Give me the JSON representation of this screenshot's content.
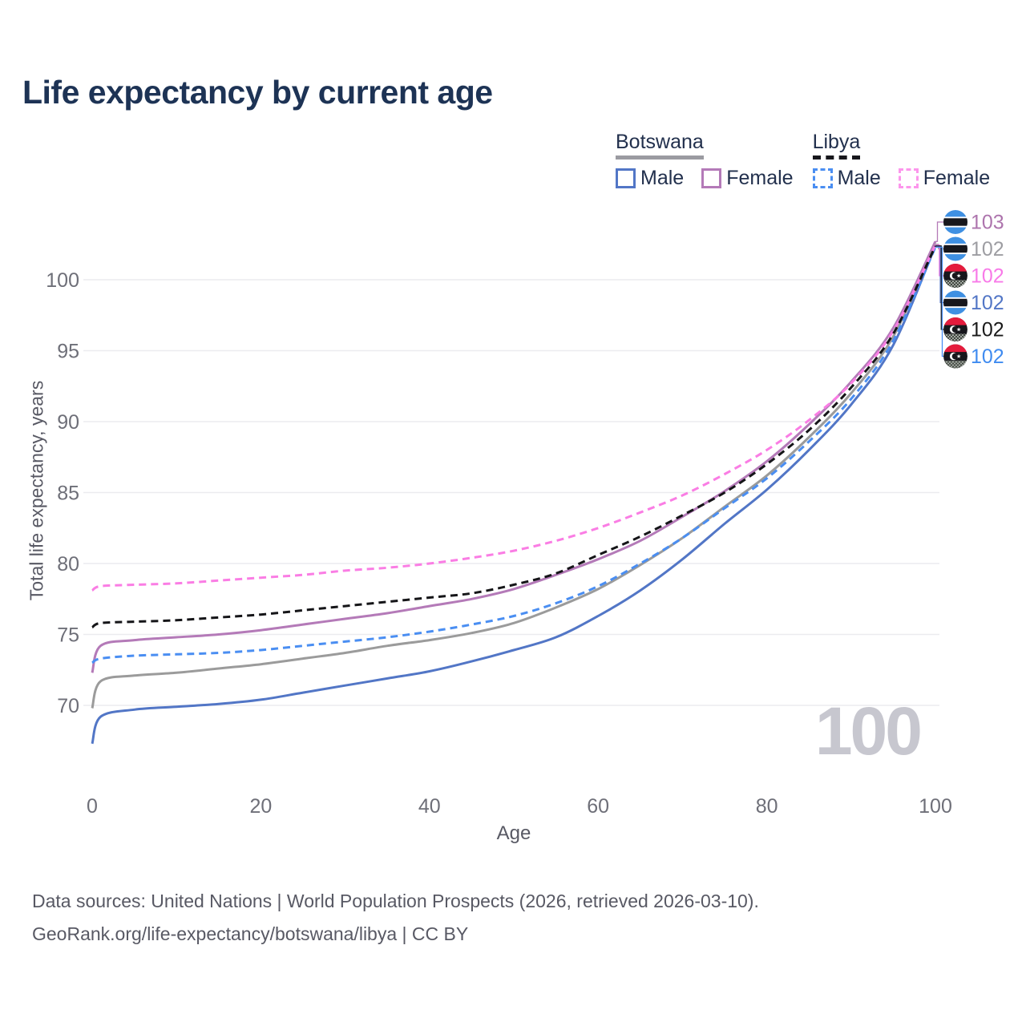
{
  "title": "Life expectancy by current age",
  "legend": {
    "groups": [
      {
        "title": "Botswana",
        "line_style": "solid",
        "underline_color": "#9b9ba1",
        "items": [
          {
            "label": "Male",
            "color": "#5276c6",
            "dashed": false
          },
          {
            "label": "Female",
            "color": "#b47ab8",
            "dashed": false
          }
        ]
      },
      {
        "title": "Libya",
        "line_style": "dashed",
        "underline_color": "#17171c",
        "items": [
          {
            "label": "Male",
            "color": "#4a8ef2",
            "dashed": true
          },
          {
            "label": "Female",
            "color": "#fc96ec",
            "dashed": true
          }
        ]
      }
    ]
  },
  "chart_data": {
    "type": "line",
    "title": "Life expectancy by current age",
    "xlabel": "Age",
    "ylabel": "Total life expectancy, years",
    "x_ticks": [
      0,
      20,
      40,
      60,
      80,
      100
    ],
    "y_ticks": [
      70,
      75,
      80,
      85,
      90,
      95,
      100
    ],
    "xlim": [
      0,
      100
    ],
    "ylim": [
      67,
      103
    ],
    "grid": "horizontal-only",
    "x": [
      0,
      1,
      5,
      10,
      15,
      20,
      25,
      30,
      35,
      40,
      45,
      50,
      55,
      60,
      65,
      70,
      75,
      80,
      85,
      90,
      95,
      100
    ],
    "series": [
      {
        "id": "bw_male",
        "name": "Botswana Male",
        "country": "Botswana",
        "sex": "Male",
        "color": "#5276c6",
        "dashed": false,
        "values": [
          67.3,
          69.2,
          69.7,
          69.9,
          70.1,
          70.4,
          70.9,
          71.4,
          71.9,
          72.4,
          73.1,
          73.9,
          74.8,
          76.3,
          78.1,
          80.3,
          82.8,
          85.2,
          88.0,
          91.2,
          95.4,
          102.4
        ],
        "end_label": "102",
        "end_label_color": "#5276c6",
        "flag": "botswana"
      },
      {
        "id": "bw_female",
        "name": "Botswana Female",
        "country": "Botswana",
        "sex": "Female",
        "color": "#b47ab8",
        "dashed": false,
        "values": [
          72.3,
          74.2,
          74.6,
          74.8,
          75.0,
          75.3,
          75.7,
          76.1,
          76.5,
          77.0,
          77.5,
          78.2,
          79.2,
          80.3,
          81.6,
          83.3,
          85.1,
          87.2,
          89.8,
          92.8,
          96.6,
          102.7
        ],
        "end_label": "103",
        "end_label_color": "#ad74ad",
        "flag": "botswana"
      },
      {
        "id": "bw_total",
        "name": "Botswana",
        "country": "Botswana",
        "sex": "All",
        "color": "#9b9b9b",
        "dashed": false,
        "values": [
          69.8,
          71.7,
          72.1,
          72.3,
          72.6,
          72.9,
          73.3,
          73.7,
          74.2,
          74.6,
          75.1,
          75.8,
          76.9,
          78.2,
          79.9,
          81.8,
          84.0,
          86.2,
          88.9,
          92.0,
          96.0,
          102.5
        ],
        "end_label": "102",
        "end_label_color": "#9d9da2",
        "flag": "botswana"
      },
      {
        "id": "ly_male",
        "name": "Libya Male",
        "country": "Libya",
        "sex": "Male",
        "color": "#4a8ef2",
        "dashed": true,
        "values": [
          73.0,
          73.3,
          73.5,
          73.6,
          73.7,
          73.9,
          74.2,
          74.5,
          74.8,
          75.2,
          75.7,
          76.3,
          77.2,
          78.4,
          80.0,
          81.8,
          83.9,
          86.0,
          88.6,
          91.6,
          95.7,
          102.3
        ],
        "end_label": "102",
        "end_label_color": "#3f8bf0",
        "flag": "libya"
      },
      {
        "id": "ly_female",
        "name": "Libya Female",
        "country": "Libya",
        "sex": "Female",
        "color": "#fa7de4",
        "dashed": true,
        "values": [
          78.1,
          78.4,
          78.5,
          78.6,
          78.8,
          79.0,
          79.2,
          79.5,
          79.7,
          80.0,
          80.4,
          80.9,
          81.6,
          82.5,
          83.6,
          84.8,
          86.3,
          88.0,
          90.1,
          92.7,
          96.4,
          102.45
        ],
        "end_label": "102",
        "end_label_color": "#f87ae8",
        "flag": "libya"
      },
      {
        "id": "ly_total",
        "name": "Libya",
        "country": "Libya",
        "sex": "All",
        "color": "#151518",
        "dashed": true,
        "values": [
          75.5,
          75.8,
          75.9,
          76.0,
          76.2,
          76.4,
          76.7,
          77.0,
          77.3,
          77.6,
          77.9,
          78.5,
          79.3,
          80.6,
          81.9,
          83.4,
          85.0,
          87.0,
          89.4,
          92.4,
          96.2,
          102.38
        ],
        "end_label": "102",
        "end_label_color": "#1a1a1a",
        "flag": "libya"
      }
    ],
    "end_label_order": [
      "bw_female",
      "bw_total",
      "ly_female",
      "bw_male",
      "ly_total",
      "ly_male"
    ],
    "legend_position": "top-right"
  },
  "watermark": "100",
  "footer": {
    "line1": "Data sources: United Nations | World Population Prospects (2026, retrieved 2026-03-10).",
    "line2": "GeoRank.org/life-expectancy/botswana/libya | CC BY"
  },
  "colors": {
    "title_text": "#1d3355",
    "axis_text": "#6e6f78",
    "muted_text": "#585964",
    "gridline": "#ececef",
    "watermark": "#c7c7cf",
    "botswana_flag_blue": "#3f90e2",
    "libya_flag_red": "#e41b3c"
  }
}
